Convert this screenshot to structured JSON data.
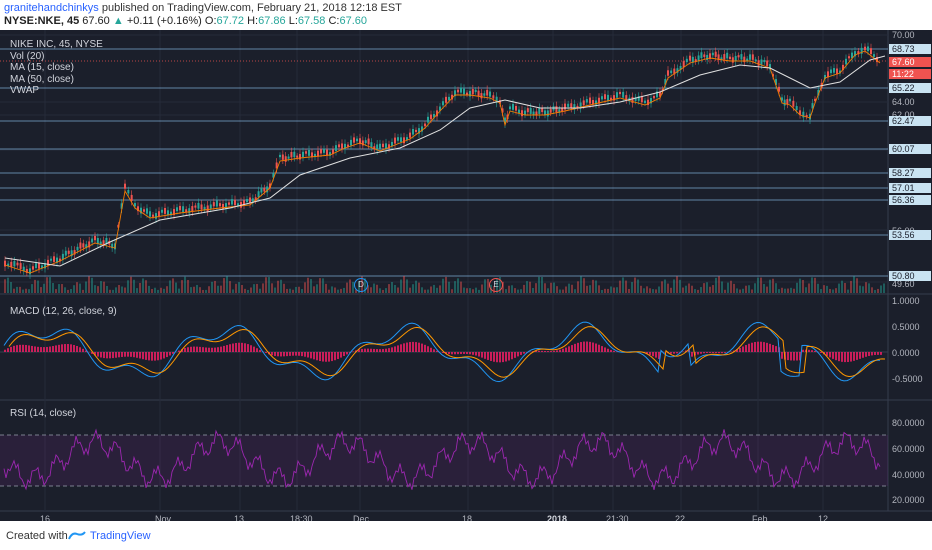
{
  "header": {
    "author": "granitehandchinkys",
    "published_text": " published on TradingView.com, February 21, 2018 12:18 EST",
    "symbol": "NYSE:NKE, 45",
    "price": "67.60",
    "change_arrow": "▲",
    "change": "+0.11 (+0.16%)",
    "o_label": "O:",
    "o_value": "67.72",
    "h_label": "H:",
    "h_value": "67.86",
    "l_label": "L:",
    "l_value": "67.58",
    "c_label": "C:",
    "c_value": "67.60"
  },
  "legend": {
    "main": [
      "NIKE INC, 45, NYSE",
      "Vol (20)",
      "MA (15, close)",
      "MA (50, close)",
      "VWAP"
    ],
    "macd": "MACD (12, 26, close, 9)",
    "rsi": "RSI (14, close)"
  },
  "price_axis": {
    "ticks": [
      "70.00",
      "64.00",
      "62.00",
      "56.00",
      "54.00",
      "52.00",
      "49.60"
    ],
    "labels": [
      "68.73",
      "67.60",
      "11:22",
      "65.22",
      "62.47",
      "60.07",
      "58.27",
      "57.01",
      "56.36",
      "53.56",
      "50.80"
    ]
  },
  "macd_axis": [
    "1.0000",
    "0.5000",
    "0.0000",
    "-0.5000"
  ],
  "rsi_axis": [
    "80.0000",
    "60.0000",
    "40.0000",
    "20.0000"
  ],
  "time_axis": [
    "16",
    "Nov",
    "13",
    "18:30",
    "Dec",
    "18",
    "2018",
    "21:30",
    "22",
    "Feb",
    "12"
  ],
  "events": [
    "D",
    "E"
  ],
  "colors": {
    "background": "#1b1f2b",
    "candle_up": "#26a69a",
    "candle_down": "#ef5350",
    "ma15": "#f57c00",
    "ma50": "#e0e0e0",
    "macd": "#2196f3",
    "signal": "#ff9800",
    "hist": "#e91e63",
    "rsi": "#9c27b0",
    "levels": "#90caf9"
  },
  "footer": {
    "created": "Created with",
    "brand": "TradingView"
  }
}
